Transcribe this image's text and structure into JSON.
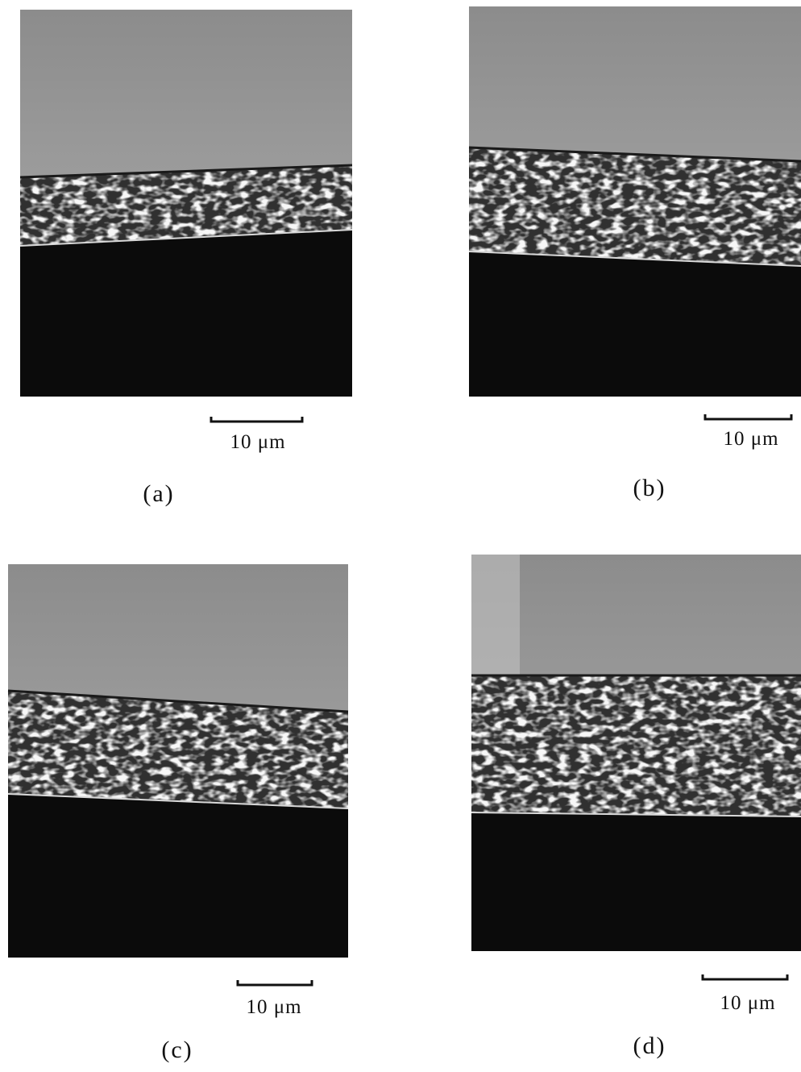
{
  "figure": {
    "panels": [
      {
        "label": "(a)",
        "scale": "10 μm"
      },
      {
        "label": "(b)",
        "scale": "10 μm"
      },
      {
        "label": "(c)",
        "scale": "10 μm"
      },
      {
        "label": "(d)",
        "scale": "10 μm"
      }
    ]
  }
}
